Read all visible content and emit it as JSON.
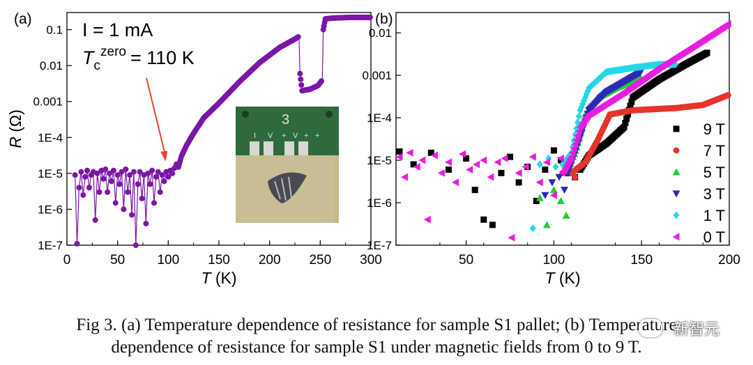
{
  "chart_data": [
    {
      "type": "scatter",
      "panel_label": "(a)",
      "xlabel_sym": "T",
      "xlabel_unit": "(K)",
      "ylabel_sym": "R",
      "ylabel_unit": "(Ω)",
      "xlim": [
        0,
        300
      ],
      "ylim": [
        1e-07,
        0.3
      ],
      "yscale": "log",
      "xticks": [
        0,
        50,
        100,
        150,
        200,
        250,
        300
      ],
      "yticks": [
        {
          "v": 0.1,
          "t": "0.1"
        },
        {
          "v": 0.01,
          "t": "0.01"
        },
        {
          "v": 0.001,
          "t": "0.001"
        },
        {
          "v": 0.0001,
          "t": "1E-4"
        },
        {
          "v": 1e-05,
          "t": "1E-5"
        },
        {
          "v": 1e-06,
          "t": "1E-6"
        },
        {
          "v": 1e-07,
          "t": "1E-7"
        }
      ],
      "annotation_current": "I = 1 mA",
      "annotation_tc_prefix": "T",
      "annotation_tc_sub": "c",
      "annotation_tc_sup": "zero",
      "annotation_tc_value": "= 110 K",
      "arrow_target": {
        "x": 100,
        "y": 1.5e-05
      },
      "inset_board_labels": [
        "3",
        "I",
        "V",
        "+",
        "V",
        "+",
        "+"
      ],
      "series": [
        {
          "color": "#7B16A8",
          "points": [
            [
              8,
              9e-06
            ],
            [
              10,
              1.1e-07
            ],
            [
              12,
              4e-06
            ],
            [
              14,
              1.1e-05
            ],
            [
              16,
              2.5e-06
            ],
            [
              18,
              8e-06
            ],
            [
              20,
              1.2e-05
            ],
            [
              22,
              4e-06
            ],
            [
              24,
              9e-06
            ],
            [
              26,
              1.1e-05
            ],
            [
              28,
              5e-07
            ],
            [
              30,
              1e-05
            ],
            [
              32,
              3e-06
            ],
            [
              34,
              1.2e-05
            ],
            [
              36,
              7e-06
            ],
            [
              38,
              1.3e-05
            ],
            [
              40,
              3e-06
            ],
            [
              42,
              1e-05
            ],
            [
              44,
              6e-06
            ],
            [
              46,
              1.2e-05
            ],
            [
              48,
              1.5e-06
            ],
            [
              50,
              9e-06
            ],
            [
              52,
              5e-06
            ],
            [
              54,
              1.1e-05
            ],
            [
              56,
              1e-06
            ],
            [
              58,
              1.3e-05
            ],
            [
              60,
              3e-06
            ],
            [
              62,
              9e-06
            ],
            [
              64,
              7e-07
            ],
            [
              66,
              1.1e-05
            ],
            [
              68,
              1e-07
            ],
            [
              70,
              5e-06
            ],
            [
              72,
              1.1e-05
            ],
            [
              74,
              2e-06
            ],
            [
              76,
              9e-06
            ],
            [
              78,
              4e-07
            ],
            [
              80,
              1e-05
            ],
            [
              82,
              5e-06
            ],
            [
              84,
              1.2e-05
            ],
            [
              86,
              1.5e-06
            ],
            [
              88,
              8e-06
            ],
            [
              90,
              1.1e-05
            ],
            [
              92,
              3e-06
            ],
            [
              94,
              9e-06
            ],
            [
              96,
              6e-06
            ],
            [
              98,
              1.1e-05
            ],
            [
              100,
              8e-06
            ],
            [
              102,
              1.2e-05
            ],
            [
              104,
              1e-05
            ],
            [
              106,
              1.4e-05
            ],
            [
              108,
              1.8e-05
            ],
            [
              110,
              1.5e-05
            ]
          ],
          "curve": [
            [
              110,
              1.5e-05
            ],
            [
              113,
              3e-05
            ],
            [
              118,
              6e-05
            ],
            [
              125,
              0.00013
            ],
            [
              135,
              0.00035
            ],
            [
              150,
              0.0009
            ],
            [
              170,
              0.0035
            ],
            [
              190,
              0.012
            ],
            [
              210,
              0.032
            ],
            [
              225,
              0.055
            ],
            [
              229,
              0.065
            ],
            [
              230,
              0.006
            ],
            [
              232,
              0.002
            ],
            [
              240,
              0.0022
            ],
            [
              248,
              0.0028
            ],
            [
              252,
              0.004
            ],
            [
              253,
              0.1
            ],
            [
              255,
              0.2
            ],
            [
              262,
              0.21
            ],
            [
              280,
              0.22
            ],
            [
              300,
              0.22
            ]
          ],
          "curve_steps": [
            [
              110,
              113
            ],
            [
              113,
              118
            ],
            [
              118,
              125
            ],
            [
              125,
              135
            ],
            [
              135,
              150
            ],
            [
              150,
              170
            ],
            [
              170,
              190
            ],
            [
              190,
              210
            ],
            [
              210,
              225
            ],
            [
              225,
              229
            ],
            [
              232,
              240
            ],
            [
              240,
              248
            ],
            [
              248,
              252
            ],
            [
              255,
              262
            ],
            [
              262,
              280
            ],
            [
              280,
              300
            ]
          ]
        }
      ]
    },
    {
      "type": "scatter",
      "panel_label": "(b)",
      "xlabel_sym": "T",
      "xlabel_unit": "(K)",
      "xlim": [
        10,
        200
      ],
      "ylim": [
        1e-07,
        0.03
      ],
      "yscale": "log",
      "xticks": [
        50,
        100,
        150,
        200
      ],
      "yticks": [
        {
          "v": 0.01,
          "t": "0.01"
        },
        {
          "v": 0.001,
          "t": "0.001"
        },
        {
          "v": 0.0001,
          "t": "1E-4"
        },
        {
          "v": 1e-05,
          "t": "1E-5"
        },
        {
          "v": 1e-06,
          "t": "1E-6"
        },
        {
          "v": 1e-07,
          "t": "1E-7"
        }
      ],
      "legend_position": "right",
      "series": [
        {
          "name": "9 T",
          "color": "#000000",
          "marker": "square",
          "curve": [
            [
              115,
              6e-06
            ],
            [
              120,
              1.3e-05
            ],
            [
              130,
              2.5e-05
            ],
            [
              140,
              6e-05
            ],
            [
              145,
              0.0003
            ],
            [
              160,
              0.0008
            ],
            [
              175,
              0.0018
            ],
            [
              188,
              0.0035
            ]
          ],
          "noise": [
            [
              12,
              1.6e-05
            ],
            [
              20,
              8e-06
            ],
            [
              30,
              1.5e-05
            ],
            [
              40,
              6e-06
            ],
            [
              50,
              1.1e-05
            ],
            [
              55,
              2e-06
            ],
            [
              60,
              4e-07
            ],
            [
              65,
              3e-07
            ],
            [
              70,
              5e-06
            ],
            [
              75,
              1.2e-05
            ],
            [
              80,
              3e-06
            ],
            [
              85,
              7e-06
            ],
            [
              90,
              1.1e-06
            ],
            [
              95,
              6e-06
            ],
            [
              100,
              1.7e-05
            ],
            [
              104,
              1e-05
            ],
            [
              108,
              5e-06
            ],
            [
              112,
              4e-06
            ]
          ]
        },
        {
          "name": "7 T",
          "color": "#E8332A",
          "marker": "circle",
          "curve": [
            [
              110,
              5e-06
            ],
            [
              118,
              9e-06
            ],
            [
              125,
              3e-05
            ],
            [
              132,
              0.00012
            ],
            [
              145,
              0.00015
            ],
            [
              170,
              0.00017
            ],
            [
              185,
              0.0002
            ],
            [
              200,
              0.00035
            ]
          ],
          "noise": [
            [
              105,
              5e-06
            ],
            [
              112,
              4e-06
            ]
          ]
        },
        {
          "name": "5 T",
          "color": "#22CC33",
          "marker": "triangle-up",
          "curve": [
            [
              108,
              6e-06
            ],
            [
              113,
              2e-05
            ],
            [
              118,
              0.00012
            ],
            [
              125,
              0.0003
            ],
            [
              135,
              0.0005
            ],
            [
              150,
              0.0009
            ]
          ],
          "noise": [
            [
              92,
              1.3e-06
            ],
            [
              96,
              3e-07
            ],
            [
              100,
              2e-06
            ],
            [
              104,
              1.1e-06
            ],
            [
              107,
              5e-07
            ]
          ]
        },
        {
          "name": "3 T",
          "color": "#2A28B8",
          "marker": "triangle-down",
          "curve": [
            [
              108,
              5e-06
            ],
            [
              113,
              2e-05
            ],
            [
              120,
              0.00015
            ],
            [
              130,
              0.0004
            ],
            [
              150,
              0.0012
            ]
          ],
          "noise": [
            [
              95,
              1.5e-06
            ],
            [
              99,
              3e-06
            ],
            [
              103,
              4e-06
            ],
            [
              106,
              2e-06
            ]
          ]
        },
        {
          "name": "1 T",
          "color": "#22D8E8",
          "marker": "diamond",
          "curve": [
            [
              105,
              8e-06
            ],
            [
              110,
              1.5e-05
            ],
            [
              115,
              0.00015
            ],
            [
              120,
              0.0005
            ],
            [
              130,
              0.0012
            ],
            [
              145,
              0.0015
            ],
            [
              160,
              0.0018
            ],
            [
              170,
              0.0018
            ]
          ],
          "noise": [
            [
              88,
              2.5e-07
            ],
            [
              92,
              8e-06
            ],
            [
              97,
              1.1e-05
            ],
            [
              101,
              7e-06
            ]
          ]
        },
        {
          "name": "0 T",
          "color": "#E81CE0",
          "marker": "triangle-left",
          "curve": [
            [
              105,
              5e-06
            ],
            [
              110,
              1.2e-05
            ],
            [
              115,
              6e-05
            ],
            [
              120,
              0.00012
            ],
            [
              140,
              0.0004
            ],
            [
              160,
              0.0015
            ],
            [
              180,
              0.005
            ],
            [
              200,
              0.017
            ]
          ],
          "noise": [
            [
              12,
              1.2e-05
            ],
            [
              15,
              4e-06
            ],
            [
              18,
              1.5e-05
            ],
            [
              22,
              7e-06
            ],
            [
              25,
              1e-05
            ],
            [
              28,
              4e-07
            ],
            [
              32,
              1.3e-05
            ],
            [
              36,
              5e-06
            ],
            [
              40,
              9e-06
            ],
            [
              44,
              3e-06
            ],
            [
              48,
              1.4e-05
            ],
            [
              52,
              6e-06
            ],
            [
              56,
              8e-06
            ],
            [
              60,
              1e-05
            ],
            [
              64,
              4e-06
            ],
            [
              68,
              9e-06
            ],
            [
              72,
              1.1e-05
            ],
            [
              76,
              1.5e-07
            ],
            [
              80,
              5e-06
            ],
            [
              84,
              7e-06
            ],
            [
              88,
              1.2e-05
            ],
            [
              92,
              3e-06
            ],
            [
              96,
              9e-06
            ],
            [
              100,
              1.5e-06
            ],
            [
              104,
              1.1e-05
            ]
          ]
        }
      ]
    }
  ],
  "caption": {
    "line1": "Fig 3. (a) Temperature dependence of resistance for sample S1 pallet; (b) Temperature",
    "line2": "dependence of resistance for sample S1 under magnetic fields from 0 to 9 T."
  },
  "watermark": "新智元"
}
